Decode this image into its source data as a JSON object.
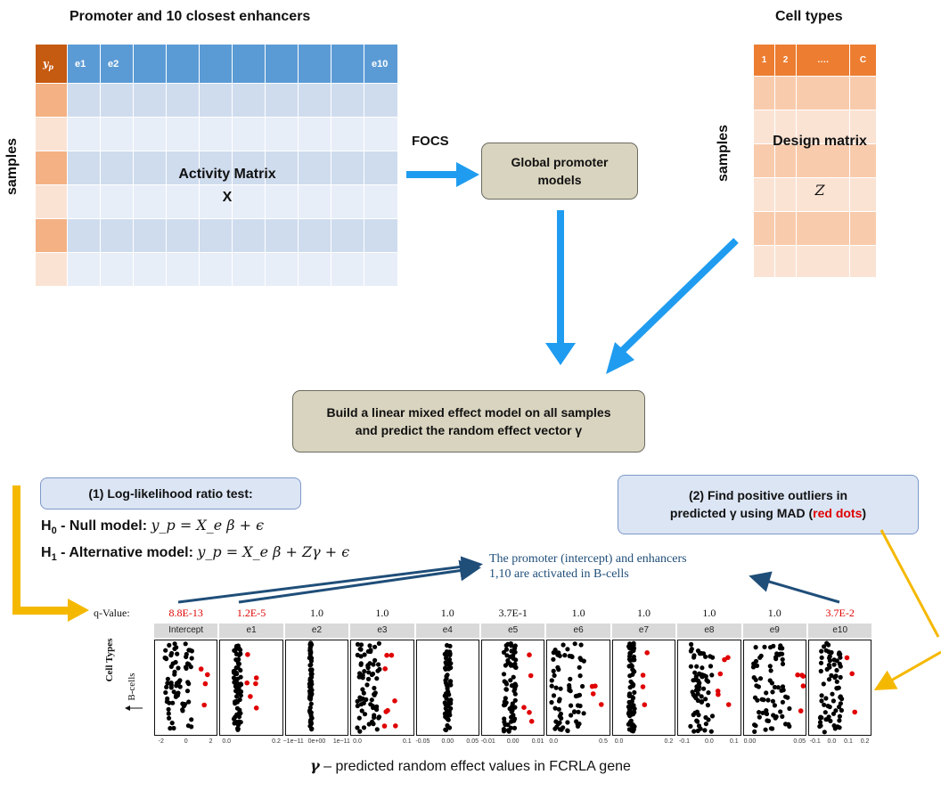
{
  "activity": {
    "title": "Promoter and 10 closest enhancers",
    "header_first": "y_p",
    "header_cols": [
      "e1",
      "e2",
      "",
      "",
      "",
      "",
      "",
      "",
      "",
      "e10"
    ],
    "samples_label": "samples",
    "matrix_label": "Activity Matrix",
    "matrix_var": "X"
  },
  "focs_label": "FOCS",
  "global_box": "Global promoter models",
  "cell_types": {
    "title": "Cell types",
    "header_cols": [
      "1",
      "2",
      "….",
      "C"
    ],
    "samples_label": "samples",
    "matrix_label": "Design matrix",
    "matrix_var": "Z"
  },
  "lmm_box": {
    "line1": "Build a linear mixed effect model on all samples",
    "line2": "and predict the random effect vector γ"
  },
  "llr_box": "(1) Log-likelihood ratio test:",
  "h0": {
    "label": "H",
    "sub": "0",
    "text": " - Null model: ",
    "formula": "y_p = X_e β + ϵ"
  },
  "h1": {
    "label": "H",
    "sub": "1",
    "text": " - Alternative model: ",
    "formula": "y_p = X_e β + Zγ + ϵ"
  },
  "outlier_box": {
    "line1": "(2) Find positive outliers in",
    "line2a": "predicted γ using MAD (",
    "line2b": "red dots",
    "line2c": ")"
  },
  "annotation": {
    "line1": "The promoter (intercept) and enhancers",
    "line2": "1,10 are activated in B-cells"
  },
  "qvalue_label": "q-Value:",
  "panels": [
    {
      "name": "Intercept",
      "q": "8.8E-13",
      "sig": true,
      "ticks": [
        "-2",
        "0",
        "2"
      ]
    },
    {
      "name": "e1",
      "q": "1.2E-5",
      "sig": true,
      "ticks": [
        "0.0",
        "0.2"
      ]
    },
    {
      "name": "e2",
      "q": "1.0",
      "sig": false,
      "ticks": [
        "−1e−11",
        "0e+00",
        "1e−11"
      ]
    },
    {
      "name": "e3",
      "q": "1.0",
      "sig": false,
      "ticks": [
        "0.0",
        "0.1"
      ]
    },
    {
      "name": "e4",
      "q": "1.0",
      "sig": false,
      "ticks": [
        "-0.05",
        "0.00",
        "0.05"
      ]
    },
    {
      "name": "e5",
      "q": "3.7E-1",
      "sig": false,
      "ticks": [
        "-0.01",
        "0.00",
        "0.01"
      ]
    },
    {
      "name": "e6",
      "q": "1.0",
      "sig": false,
      "ticks": [
        "0.0",
        "0.5"
      ]
    },
    {
      "name": "e7",
      "q": "1.0",
      "sig": false,
      "ticks": [
        "0.0",
        "0.2"
      ]
    },
    {
      "name": "e8",
      "q": "1.0",
      "sig": false,
      "ticks": [
        "-0.1",
        "0.0",
        "0.1"
      ]
    },
    {
      "name": "e9",
      "q": "1.0",
      "sig": false,
      "ticks": [
        "0.00",
        "0.05"
      ]
    },
    {
      "name": "e10",
      "q": "3.7E-2",
      "sig": true,
      "ticks": [
        "-0.1",
        "0.0",
        "0.1",
        "0.2"
      ]
    }
  ],
  "y_axis_label": "Cell Types",
  "bcells_label": "B-cells",
  "x_caption": {
    "symbol": "γ",
    "text": " – predicted random effect values in FCRLA gene"
  },
  "colors": {
    "blue_header": "#5b9bd5",
    "orange_header": "#ed7d31",
    "light_blue": "#cfdcee",
    "box_tan": "#d9d4bf",
    "arrow_blue": "#1f9cf0",
    "arrow_yellow": "#f5b800",
    "arrow_navy": "#1f4e79",
    "red": "#e00000"
  }
}
